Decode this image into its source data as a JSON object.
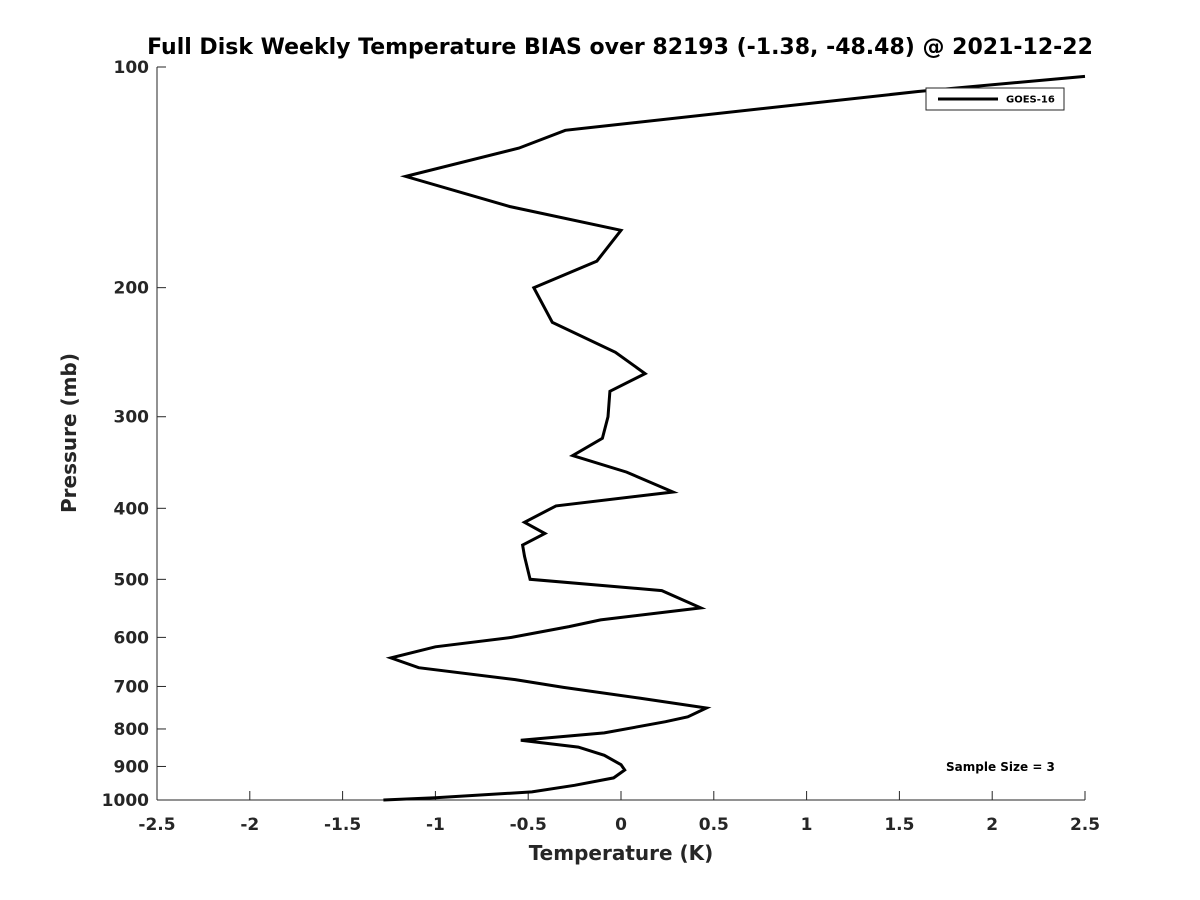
{
  "chart_data": {
    "type": "line",
    "title": "Full Disk Weekly Temperature BIAS over 82193 (-1.38, -48.48) @ 2021-12-22",
    "xlabel": "Temperature (K)",
    "ylabel": "Pressure (mb)",
    "xlim": [
      -2.5,
      2.5
    ],
    "ylim": [
      1000,
      100
    ],
    "yscale": "log",
    "y_reversed": true,
    "grid": false,
    "legend_position": "top-right",
    "x_ticks": [
      -2.5,
      -2,
      -1.5,
      -1,
      -0.5,
      0,
      0.5,
      1,
      1.5,
      2,
      2.5
    ],
    "x_tick_labels": [
      "-2.5",
      "-2",
      "-1.5",
      "-1",
      "-0.5",
      "0",
      "0.5",
      "1",
      "1.5",
      "2",
      "2.5"
    ],
    "y_ticks": [
      100,
      200,
      300,
      400,
      500,
      600,
      700,
      800,
      900,
      1000
    ],
    "y_tick_labels": [
      "100",
      "200",
      "300",
      "400",
      "500",
      "600",
      "700",
      "800",
      "900",
      "1000"
    ],
    "series": [
      {
        "name": "GOES-16",
        "color": "#000000",
        "points": [
          {
            "x": 2.5,
            "y": 103
          },
          {
            "x": 1.6,
            "y": 108
          },
          {
            "x": -0.3,
            "y": 122
          },
          {
            "x": -0.55,
            "y": 129
          },
          {
            "x": -1.16,
            "y": 141
          },
          {
            "x": -0.6,
            "y": 155
          },
          {
            "x": 0.0,
            "y": 167
          },
          {
            "x": -0.13,
            "y": 184
          },
          {
            "x": -0.47,
            "y": 200
          },
          {
            "x": -0.37,
            "y": 223
          },
          {
            "x": -0.03,
            "y": 245
          },
          {
            "x": 0.13,
            "y": 262
          },
          {
            "x": -0.06,
            "y": 277
          },
          {
            "x": -0.07,
            "y": 300
          },
          {
            "x": -0.1,
            "y": 321
          },
          {
            "x": -0.26,
            "y": 339
          },
          {
            "x": 0.03,
            "y": 357
          },
          {
            "x": 0.28,
            "y": 380
          },
          {
            "x": -0.35,
            "y": 397
          },
          {
            "x": -0.52,
            "y": 418
          },
          {
            "x": -0.41,
            "y": 433
          },
          {
            "x": -0.53,
            "y": 449
          },
          {
            "x": -0.52,
            "y": 465
          },
          {
            "x": -0.49,
            "y": 500
          },
          {
            "x": 0.22,
            "y": 518
          },
          {
            "x": 0.43,
            "y": 547
          },
          {
            "x": -0.11,
            "y": 568
          },
          {
            "x": -0.28,
            "y": 580
          },
          {
            "x": -0.59,
            "y": 600
          },
          {
            "x": -1.0,
            "y": 618
          },
          {
            "x": -1.24,
            "y": 640
          },
          {
            "x": -1.09,
            "y": 660
          },
          {
            "x": -0.57,
            "y": 685
          },
          {
            "x": -0.31,
            "y": 702
          },
          {
            "x": 0.1,
            "y": 726
          },
          {
            "x": 0.46,
            "y": 749
          },
          {
            "x": 0.36,
            "y": 770
          },
          {
            "x": 0.24,
            "y": 782
          },
          {
            "x": -0.09,
            "y": 810
          },
          {
            "x": -0.54,
            "y": 829
          },
          {
            "x": -0.23,
            "y": 847
          },
          {
            "x": -0.09,
            "y": 869
          },
          {
            "x": 0.0,
            "y": 895
          },
          {
            "x": 0.02,
            "y": 910
          },
          {
            "x": -0.04,
            "y": 933
          },
          {
            "x": -0.25,
            "y": 955
          },
          {
            "x": -0.48,
            "y": 975
          },
          {
            "x": -1.0,
            "y": 993
          },
          {
            "x": -1.28,
            "y": 1000
          }
        ]
      }
    ],
    "annotations": [
      "Sample Size = 3"
    ]
  }
}
